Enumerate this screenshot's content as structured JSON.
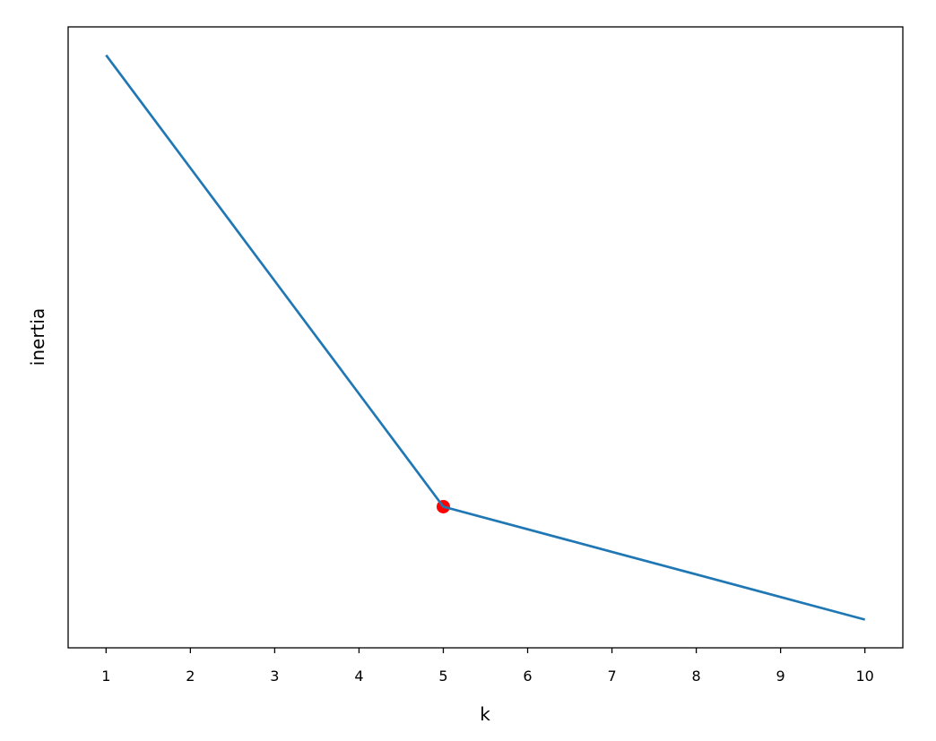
{
  "chart_data": {
    "type": "line",
    "title": "",
    "xlabel": "k",
    "ylabel": "inertia",
    "x": [
      1,
      2,
      3,
      4,
      5,
      6,
      7,
      8,
      9,
      10
    ],
    "series": [
      {
        "values": [
          25,
          20,
          15,
          10,
          5,
          4,
          3,
          2,
          1,
          0
        ],
        "color": "#1f77b4"
      }
    ],
    "highlight": {
      "x": 5,
      "y": 5,
      "color": "#ff0000"
    },
    "xticks": [
      "1",
      "2",
      "3",
      "4",
      "5",
      "6",
      "7",
      "8",
      "9",
      "10"
    ],
    "yticks": [],
    "xlim": [
      0.55,
      10.45
    ],
    "ylim": [
      -1.25,
      26.25
    ],
    "grid": false,
    "legend": "none"
  }
}
